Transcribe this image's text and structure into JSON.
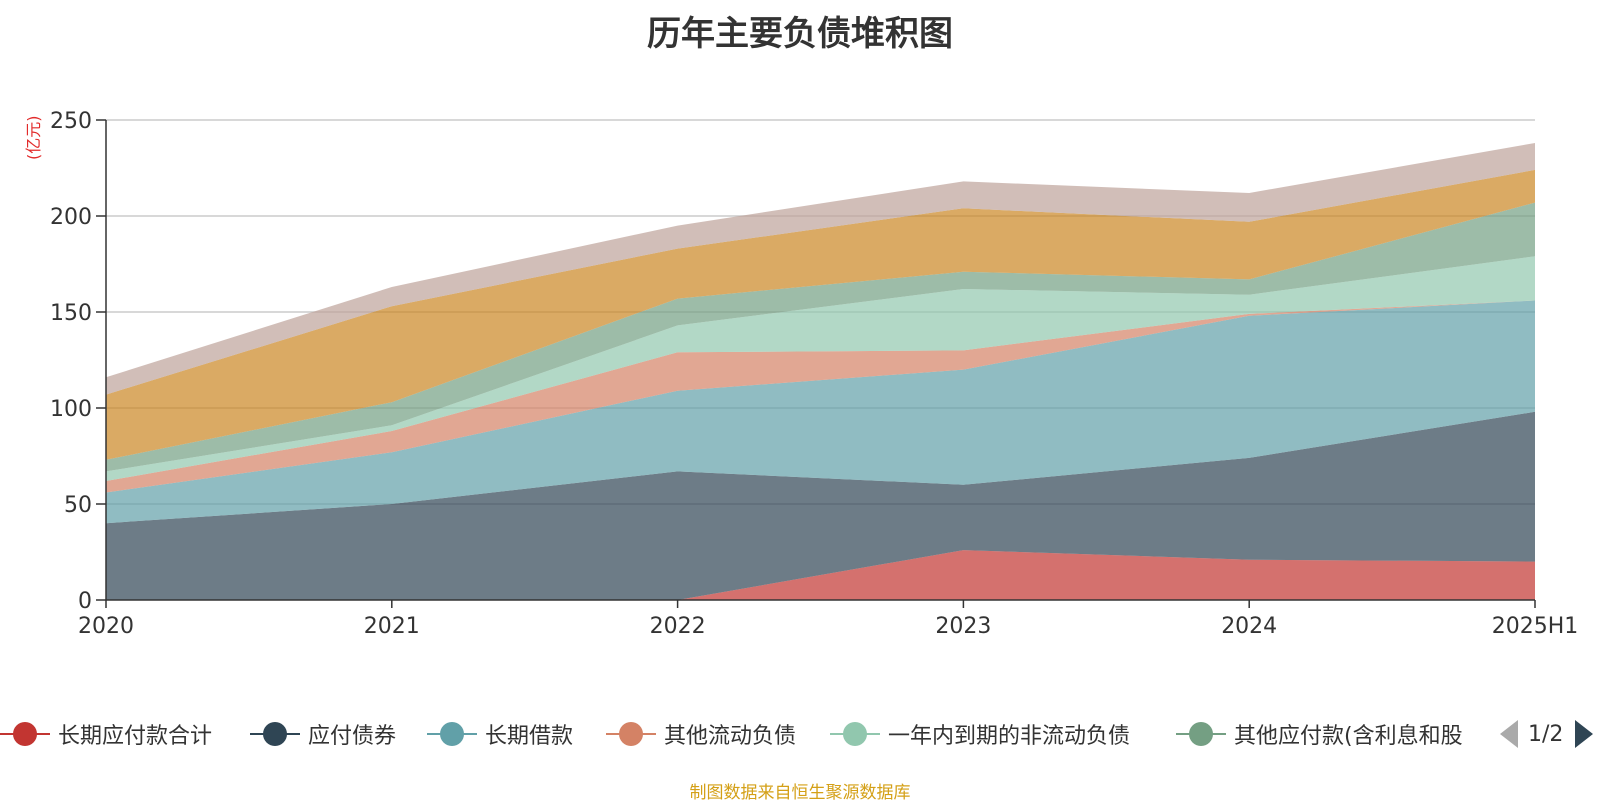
{
  "chart_data": {
    "type": "area",
    "stacked": true,
    "title": "历年主要负债堆积图",
    "y_unit": "(亿元)",
    "categories": [
      "2020",
      "2021",
      "2022",
      "2023",
      "2024",
      "2025H1"
    ],
    "ylim": [
      0,
      250
    ],
    "y_ticks": [
      0,
      50,
      100,
      150,
      200,
      250
    ],
    "grid": true,
    "series": [
      {
        "name": "长期应付款合计",
        "color": "#c23531",
        "values": [
          0,
          0,
          0,
          26,
          21,
          20
        ]
      },
      {
        "name": "应付债券",
        "color": "#2f4554",
        "values": [
          40,
          50,
          67,
          34,
          53,
          78
        ]
      },
      {
        "name": "长期借款",
        "color": "#61a0a8",
        "values": [
          16,
          27,
          42,
          60,
          74,
          58
        ]
      },
      {
        "name": "其他流动负债",
        "color": "#d48265",
        "values": [
          6,
          11,
          20,
          10,
          1,
          0
        ]
      },
      {
        "name": "一年内到期的非流动负债",
        "color": "#91c7ae",
        "values": [
          5,
          3,
          14,
          32,
          10,
          23
        ]
      },
      {
        "name": "其他应付款(含利息和股",
        "color": "#749f83",
        "values": [
          6,
          12,
          14,
          9,
          8,
          28
        ]
      },
      {
        "name": "",
        "color": "#ca8622",
        "values": [
          34,
          50,
          26,
          33,
          30,
          17
        ]
      },
      {
        "name": "",
        "color": "#bda29a",
        "values": [
          9,
          10,
          12,
          14,
          15,
          14
        ]
      }
    ],
    "legend_position": "bottom"
  },
  "legend": {
    "pager": "1/2"
  },
  "source_note": "制图数据来自恒生聚源数据库"
}
